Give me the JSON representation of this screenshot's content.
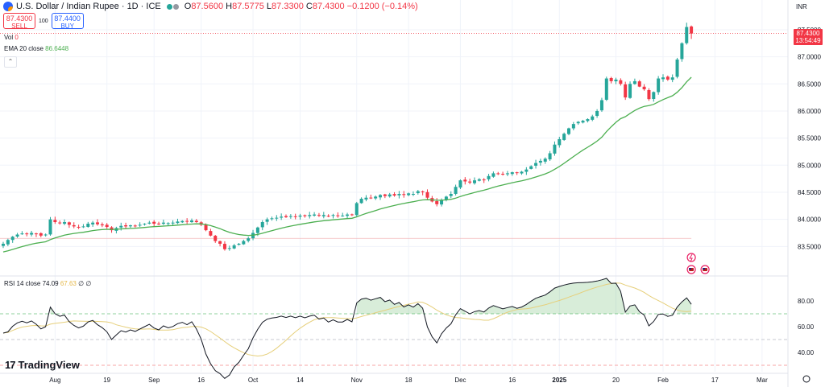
{
  "header": {
    "title": "U.S. Dollar / Indian Rupee · 1D · ICE",
    "ohlc": {
      "o_label": "O",
      "o": "87.5600",
      "h_label": "H",
      "h": "87.5775",
      "l_label": "L",
      "l": "87.3300",
      "c_label": "C",
      "c": "87.4300",
      "change": "−0.1200 (−0.14%)"
    },
    "status_dot_colors": [
      "#26a69a",
      "#9598a1"
    ]
  },
  "trade": {
    "sell_price": "87.4300",
    "sell_label": "SELL",
    "spread": "100",
    "buy_price": "87.4400",
    "buy_label": "BUY"
  },
  "indicators": {
    "vol_label": "Vol",
    "vol_value": "0",
    "ema_label": "EMA 20 close",
    "ema_value": "86.6448",
    "rsi_label": "RSI 14 close",
    "rsi_value": "74.09",
    "rsi_ma_value": "67.63",
    "rsi_extra1": "∅",
    "rsi_extra2": "∅"
  },
  "price_axis": {
    "currency": "INR",
    "last_price": "87.4300",
    "countdown": "13:54:49"
  },
  "logo": {
    "text": "TradingView"
  },
  "colors": {
    "up": "#26a69a",
    "down": "#f23645",
    "ema": "#4caf50",
    "rsi": "#131722",
    "rsi_ma": "#e6cf7a"
  },
  "chart_data": [
    {
      "type": "candlestick",
      "x_ticks": [
        "Aug",
        "19",
        "Sep",
        "16",
        "Oct",
        "14",
        "Nov",
        "18",
        "Dec",
        "16",
        "2025",
        "20",
        "Feb",
        "17",
        "Mar"
      ],
      "y_ticks": [
        83.5,
        84.0,
        84.5,
        85.0,
        85.5,
        86.0,
        86.5,
        87.0,
        87.5
      ],
      "ylim": [
        83.0,
        87.9
      ],
      "close": [
        83.55,
        83.62,
        83.68,
        83.72,
        83.74,
        83.73,
        83.75,
        83.73,
        83.7,
        83.72,
        84.0,
        83.95,
        83.93,
        83.95,
        83.9,
        83.87,
        83.85,
        83.87,
        83.92,
        83.94,
        83.91,
        83.89,
        83.86,
        83.8,
        83.84,
        83.88,
        83.87,
        83.89,
        83.88,
        83.9,
        83.92,
        83.94,
        83.92,
        83.91,
        83.94,
        83.93,
        83.94,
        83.96,
        83.97,
        83.96,
        83.98,
        83.95,
        83.9,
        83.8,
        83.7,
        83.6,
        83.55,
        83.45,
        83.47,
        83.52,
        83.55,
        83.6,
        83.65,
        83.75,
        83.85,
        83.95,
        84.0,
        84.02,
        84.03,
        84.05,
        84.04,
        84.06,
        84.05,
        84.07,
        84.06,
        84.08,
        84.09,
        84.07,
        84.08,
        84.06,
        84.08,
        84.07,
        84.07,
        84.09,
        84.08,
        84.3,
        84.38,
        84.4,
        84.39,
        84.42,
        84.45,
        84.43,
        84.46,
        84.44,
        84.47,
        84.45,
        84.48,
        84.47,
        84.52,
        84.5,
        84.4,
        84.33,
        84.28,
        84.36,
        84.42,
        84.47,
        84.6,
        84.72,
        84.7,
        84.68,
        84.72,
        84.74,
        84.73,
        84.8,
        84.85,
        84.84,
        84.83,
        84.85,
        84.87,
        84.86,
        84.88,
        84.92,
        84.98,
        85.04,
        85.08,
        85.12,
        85.22,
        85.38,
        85.48,
        85.58,
        85.68,
        85.76,
        85.8,
        85.82,
        85.85,
        85.9,
        86.0,
        86.2,
        86.6,
        86.55,
        86.58,
        86.5,
        86.25,
        86.5,
        86.55,
        86.45,
        86.4,
        86.22,
        86.35,
        86.6,
        86.62,
        86.58,
        86.62,
        86.95,
        87.25,
        87.55,
        87.43
      ]
    },
    {
      "type": "line",
      "name": "EMA 20 close",
      "value_last": 86.6448
    },
    {
      "type": "line",
      "name": "RSI 14 close",
      "y_ticks": [
        40.0,
        60.0,
        80.0
      ],
      "ylim": [
        25,
        95
      ],
      "bands": [
        30,
        50,
        70
      ],
      "value_last": 74.09,
      "ma_last": 67.63
    }
  ]
}
